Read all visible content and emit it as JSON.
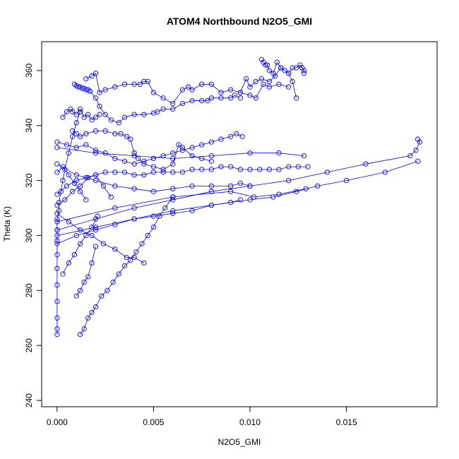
{
  "chart_data": {
    "type": "line",
    "title": "ATOM4 Northbound N2O5_GMI",
    "xlabel": "N2O5_GMI",
    "ylabel": "Theta (K)",
    "xlim": [
      -0.0008,
      0.0197
    ],
    "ylim": [
      237.7,
      370.5
    ],
    "x_ticks": [
      0.0,
      0.005,
      0.01,
      0.015
    ],
    "x_tick_labels": [
      "0.000",
      "0.005",
      "0.010",
      "0.015"
    ],
    "y_ticks": [
      240,
      260,
      280,
      300,
      320,
      340,
      360
    ],
    "y_tick_labels": [
      "240",
      "260",
      "280",
      "300",
      "320",
      "340",
      "360"
    ],
    "grid": false,
    "legend": "none",
    "series_color": "#0000ff",
    "marker": "open-circle",
    "series": [
      {
        "x": [
          0.0,
          0.0,
          0.0,
          0.0,
          0.0,
          0.0,
          0.0,
          0.0,
          0.0,
          0.0,
          0.0001,
          0.0001,
          0.0002,
          0.0003,
          0.0004,
          0.0006,
          0.0008,
          0.001,
          0.0012
        ],
        "y": [
          264,
          266,
          270,
          276,
          282,
          288,
          293,
          298,
          302,
          306,
          309,
          312,
          316,
          320,
          324,
          330,
          336,
          341,
          345
        ]
      },
      {
        "x": [
          0.0003,
          0.0005,
          0.0007,
          0.0008,
          0.001,
          0.0012,
          0.0014,
          0.0016,
          0.0018,
          0.002,
          0.0022
        ],
        "y": [
          343,
          345,
          346,
          345,
          344,
          346,
          343,
          344,
          342,
          343,
          344
        ]
      },
      {
        "x": [
          0.0009,
          0.001,
          0.0011,
          0.0012,
          0.0013,
          0.0014,
          0.0015,
          0.0016,
          0.0017
        ],
        "y": [
          355,
          354.5,
          354,
          354,
          353.5,
          353.5,
          353,
          353,
          352.5
        ]
      },
      {
        "x": [
          0.0017,
          0.002,
          0.0022,
          0.0025,
          0.0028,
          0.0032,
          0.0035,
          0.004,
          0.0045,
          0.005,
          0.0052,
          0.0055,
          0.006,
          0.0065,
          0.007,
          0.0075,
          0.0078,
          0.008,
          0.0085,
          0.009,
          0.0092,
          0.0095
        ],
        "y": [
          352.5,
          350,
          347,
          344,
          342,
          341,
          343,
          344,
          344,
          344.5,
          345,
          346,
          346,
          348,
          349,
          349,
          349,
          350,
          350,
          350,
          351,
          350
        ]
      },
      {
        "x": [
          0.0015,
          0.0018,
          0.002,
          0.0022,
          0.0025,
          0.003,
          0.0035,
          0.004,
          0.0043,
          0.0045,
          0.0047,
          0.005,
          0.0055,
          0.006,
          0.0065,
          0.0068,
          0.007,
          0.0075,
          0.008,
          0.0085,
          0.009,
          0.0095,
          0.01,
          0.0103,
          0.0107,
          0.011,
          0.0115,
          0.012
        ],
        "y": [
          357,
          358,
          359,
          352,
          353,
          354,
          355,
          355,
          355,
          356,
          356,
          352,
          350,
          348,
          353,
          354,
          353,
          355,
          355,
          352,
          353,
          352,
          351,
          350,
          355,
          354,
          355,
          354
        ]
      },
      {
        "x": [
          0.0106,
          0.0107,
          0.0108,
          0.0109,
          0.011,
          0.0112,
          0.0114,
          0.0116,
          0.0118,
          0.012,
          0.0122,
          0.0124,
          0.0126,
          0.0127,
          0.0128,
          0.0128
        ],
        "y": [
          364,
          363,
          362,
          362,
          360,
          359,
          363,
          361,
          360,
          359,
          361,
          361,
          362,
          361,
          360,
          359
        ]
      },
      {
        "x": [
          0.0095,
          0.0098,
          0.01,
          0.0103,
          0.0106,
          0.011,
          0.0113,
          0.0116,
          0.012,
          0.0122,
          0.0124
        ],
        "y": [
          352,
          357,
          354,
          356,
          357,
          356,
          358,
          361,
          359,
          356,
          350
        ]
      },
      {
        "x": [
          0.0008,
          0.001,
          0.0012,
          0.0015,
          0.002,
          0.0025,
          0.003,
          0.0033,
          0.0036,
          0.0038,
          0.004,
          0.0042,
          0.0045,
          0.005,
          0.0055,
          0.006,
          0.0063,
          0.0065,
          0.007,
          0.0075,
          0.008
        ],
        "y": [
          338,
          337,
          336,
          337,
          338,
          338,
          337,
          337,
          336,
          335,
          330,
          328,
          326,
          325,
          324,
          326,
          333,
          332,
          329,
          328,
          327
        ]
      },
      {
        "x": [
          0.0,
          0.0005,
          0.001,
          0.0015,
          0.002,
          0.0025,
          0.003,
          0.0035,
          0.004,
          0.0045,
          0.005,
          0.0055,
          0.006,
          0.0065,
          0.007,
          0.0075,
          0.008,
          0.0085,
          0.009,
          0.0095,
          0.01,
          0.0105,
          0.011,
          0.0115,
          0.012,
          0.0125,
          0.013
        ],
        "y": [
          315,
          318,
          320,
          321,
          322,
          323,
          323,
          323,
          322,
          322,
          323,
          323,
          323,
          323,
          324,
          324,
          324,
          325,
          325,
          324,
          324,
          324,
          324,
          324,
          325,
          325,
          325
        ]
      },
      {
        "x": [
          0.0,
          0.002,
          0.004,
          0.006,
          0.008,
          0.01,
          0.012,
          0.014,
          0.016,
          0.0183,
          0.0186,
          0.0188,
          0.0187
        ],
        "y": [
          302,
          306,
          310,
          313,
          316,
          318,
          320,
          323,
          326,
          329,
          331,
          334,
          335
        ]
      },
      {
        "x": [
          0.0,
          0.002,
          0.004,
          0.006,
          0.008,
          0.01,
          0.0112,
          0.0124,
          0.0135,
          0.015,
          0.017,
          0.0187
        ],
        "y": [
          300,
          303,
          306,
          309,
          311,
          313,
          314,
          316,
          318,
          320,
          323,
          327
        ]
      },
      {
        "x": [
          0.0,
          0.003,
          0.006,
          0.009,
          0.0102,
          0.0115,
          0.0129
        ],
        "y": [
          305,
          310,
          314,
          316,
          314,
          315,
          317
        ]
      },
      {
        "x": [
          0.0012,
          0.0014,
          0.0016,
          0.0018,
          0.002,
          0.0023,
          0.0026,
          0.0029,
          0.0032,
          0.0035,
          0.0038,
          0.0041,
          0.0044,
          0.0047,
          0.005,
          0.0053,
          0.0056,
          0.006
        ],
        "y": [
          264,
          266,
          270,
          272,
          274,
          278,
          280,
          283,
          286,
          289,
          291,
          294,
          297,
          300,
          303,
          307,
          310,
          314
        ]
      },
      {
        "x": [
          0.001,
          0.0012,
          0.0014,
          0.0016,
          0.0018,
          0.002
        ],
        "y": [
          278,
          280,
          283,
          285,
          290,
          296
        ]
      },
      {
        "x": [
          0.0,
          0.001,
          0.002,
          0.003,
          0.004,
          0.005,
          0.006,
          0.007,
          0.008,
          0.009,
          0.0095
        ],
        "y": [
          297,
          300,
          302,
          304,
          306,
          307,
          308,
          309,
          311,
          312,
          313
        ]
      },
      {
        "x": [
          0.0,
          0.001,
          0.002,
          0.003,
          0.004,
          0.005,
          0.006,
          0.007,
          0.008,
          0.009,
          0.0095,
          0.01
        ],
        "y": [
          326,
          322,
          320,
          318,
          317,
          316,
          317,
          318,
          318,
          318,
          319,
          318
        ]
      },
      {
        "x": [
          0.0,
          0.002,
          0.004,
          0.006,
          0.008,
          0.01,
          0.0115,
          0.0128
        ],
        "y": [
          332,
          330,
          329,
          328,
          329,
          330,
          330,
          329
        ]
      },
      {
        "x": [
          0.0,
          0.0006,
          0.0012,
          0.0018,
          0.0024,
          0.003,
          0.0036,
          0.004,
          0.0045
        ],
        "y": [
          308,
          305,
          302,
          300,
          297,
          295,
          292,
          292,
          290
        ]
      },
      {
        "x": [
          0.0003,
          0.0006,
          0.0009,
          0.0012,
          0.0015,
          0.0018,
          0.0021
        ],
        "y": [
          286,
          290,
          293,
          297,
          300,
          303,
          307
        ]
      },
      {
        "x": [
          0.0,
          0.0005,
          0.001,
          0.0015,
          0.002,
          0.0025,
          0.003,
          0.0035,
          0.004,
          0.0045,
          0.005,
          0.0055,
          0.006,
          0.0065,
          0.007,
          0.0075,
          0.008,
          0.0085,
          0.009,
          0.0093,
          0.0096
        ],
        "y": [
          334,
          333,
          332,
          333,
          331,
          330,
          328,
          327,
          326,
          327,
          328,
          329,
          330,
          331,
          332,
          333,
          334,
          335,
          336,
          337,
          336
        ]
      },
      {
        "x": [
          0.0,
          0.0004,
          0.0008,
          0.0012,
          0.0016,
          0.002,
          0.0024,
          0.0028
        ],
        "y": [
          311,
          313,
          316,
          318,
          321,
          322,
          318,
          314
        ]
      },
      {
        "x": [
          0.0,
          0.0003,
          0.0006,
          0.0009,
          0.0012,
          0.0015
        ],
        "y": [
          323,
          325,
          322,
          319,
          316,
          313
        ]
      }
    ]
  }
}
